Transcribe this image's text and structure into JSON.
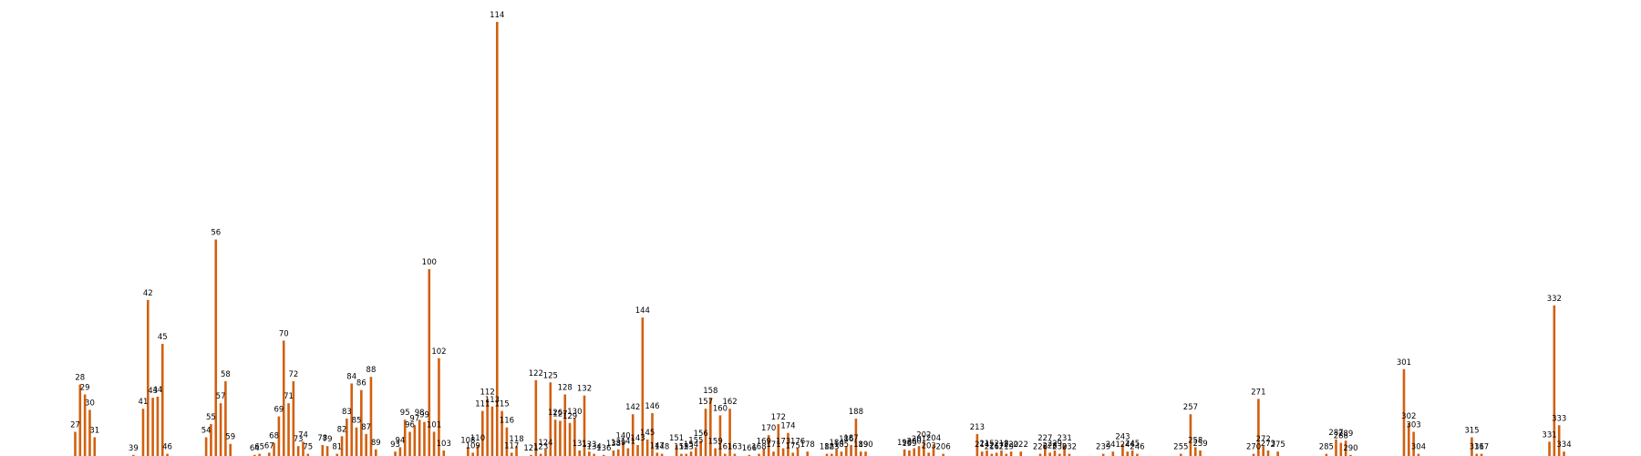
{
  "chart_data": {
    "type": "bar",
    "title": "",
    "xlabel": "",
    "ylabel": "",
    "xlim": [
      22,
      340
    ],
    "ylim": [
      0,
      4.1
    ],
    "grid": false,
    "bar_color": "#d2600f",
    "label_color": "#000000",
    "points": [
      {
        "x": 27,
        "y": 0.22,
        "label": "27"
      },
      {
        "x": 28,
        "y": 0.65,
        "label": "28"
      },
      {
        "x": 29,
        "y": 0.56,
        "label": "29"
      },
      {
        "x": 30,
        "y": 0.42,
        "label": "30"
      },
      {
        "x": 31,
        "y": 0.17,
        "label": "31"
      },
      {
        "x": 39,
        "y": 0.01,
        "label": "39"
      },
      {
        "x": 41,
        "y": 0.43,
        "label": "41"
      },
      {
        "x": 42,
        "y": 1.42,
        "label": "42"
      },
      {
        "x": 43,
        "y": 0.53,
        "label": "43"
      },
      {
        "x": 44,
        "y": 0.54,
        "label": "44"
      },
      {
        "x": 45,
        "y": 1.02,
        "label": "45"
      },
      {
        "x": 46,
        "y": 0.02,
        "label": "46"
      },
      {
        "x": 54,
        "y": 0.17,
        "label": "54"
      },
      {
        "x": 55,
        "y": 0.29,
        "label": "55"
      },
      {
        "x": 56,
        "y": 1.97,
        "label": "56"
      },
      {
        "x": 57,
        "y": 0.48,
        "label": "57"
      },
      {
        "x": 58,
        "y": 0.68,
        "label": "58"
      },
      {
        "x": 59,
        "y": 0.11,
        "label": "59"
      },
      {
        "x": 64,
        "y": 0.01,
        "label": "64"
      },
      {
        "x": 65,
        "y": 0.02,
        "label": "65"
      },
      {
        "x": 67,
        "y": 0.03,
        "label": "67"
      },
      {
        "x": 68,
        "y": 0.12,
        "label": "68"
      },
      {
        "x": 69,
        "y": 0.36,
        "label": "69"
      },
      {
        "x": 70,
        "y": 1.05,
        "label": "70"
      },
      {
        "x": 71,
        "y": 0.48,
        "label": "71"
      },
      {
        "x": 72,
        "y": 0.68,
        "label": "72"
      },
      {
        "x": 73,
        "y": 0.09,
        "label": "73"
      },
      {
        "x": 74,
        "y": 0.13,
        "label": "74"
      },
      {
        "x": 75,
        "y": 0.02,
        "label": "75"
      },
      {
        "x": 78,
        "y": 0.1,
        "label": "78"
      },
      {
        "x": 79,
        "y": 0.09,
        "label": "79"
      },
      {
        "x": 81,
        "y": 0.02,
        "label": "81"
      },
      {
        "x": 82,
        "y": 0.18,
        "label": "82"
      },
      {
        "x": 83,
        "y": 0.34,
        "label": "83"
      },
      {
        "x": 84,
        "y": 0.66,
        "label": "84"
      },
      {
        "x": 85,
        "y": 0.26,
        "label": "85"
      },
      {
        "x": 86,
        "y": 0.6,
        "label": "86"
      },
      {
        "x": 87,
        "y": 0.2,
        "label": "87"
      },
      {
        "x": 88,
        "y": 0.72,
        "label": "88"
      },
      {
        "x": 89,
        "y": 0.06,
        "label": "89"
      },
      {
        "x": 93,
        "y": 0.04,
        "label": "93"
      },
      {
        "x": 94,
        "y": 0.08,
        "label": "94"
      },
      {
        "x": 95,
        "y": 0.33,
        "label": "95"
      },
      {
        "x": 96,
        "y": 0.22,
        "label": "96"
      },
      {
        "x": 97,
        "y": 0.28,
        "label": "97"
      },
      {
        "x": 98,
        "y": 0.33,
        "label": "98"
      },
      {
        "x": 99,
        "y": 0.31,
        "label": "99"
      },
      {
        "x": 100,
        "y": 1.7,
        "label": "100"
      },
      {
        "x": 101,
        "y": 0.22,
        "label": "101"
      },
      {
        "x": 102,
        "y": 0.89,
        "label": "102"
      },
      {
        "x": 103,
        "y": 0.05,
        "label": "103"
      },
      {
        "x": 108,
        "y": 0.08,
        "label": "108"
      },
      {
        "x": 109,
        "y": 0.03,
        "label": "109"
      },
      {
        "x": 110,
        "y": 0.1,
        "label": "110"
      },
      {
        "x": 111,
        "y": 0.41,
        "label": "111"
      },
      {
        "x": 112,
        "y": 0.52,
        "label": "112"
      },
      {
        "x": 113,
        "y": 0.45,
        "label": "113"
      },
      {
        "x": 114,
        "y": 3.95,
        "label": "114"
      },
      {
        "x": 115,
        "y": 0.41,
        "label": "115"
      },
      {
        "x": 116,
        "y": 0.26,
        "label": "116"
      },
      {
        "x": 117,
        "y": 0.03,
        "label": "117"
      },
      {
        "x": 118,
        "y": 0.09,
        "label": "118"
      },
      {
        "x": 121,
        "y": 0.01,
        "label": "121"
      },
      {
        "x": 122,
        "y": 0.69,
        "label": "122"
      },
      {
        "x": 123,
        "y": 0.02,
        "label": "123"
      },
      {
        "x": 124,
        "y": 0.06,
        "label": "124"
      },
      {
        "x": 125,
        "y": 0.67,
        "label": "125"
      },
      {
        "x": 126,
        "y": 0.33,
        "label": "126"
      },
      {
        "x": 127,
        "y": 0.32,
        "label": "127"
      },
      {
        "x": 128,
        "y": 0.56,
        "label": "128"
      },
      {
        "x": 129,
        "y": 0.3,
        "label": "129"
      },
      {
        "x": 130,
        "y": 0.34,
        "label": "130"
      },
      {
        "x": 131,
        "y": 0.05,
        "label": "131"
      },
      {
        "x": 132,
        "y": 0.55,
        "label": "132"
      },
      {
        "x": 133,
        "y": 0.04,
        "label": "133"
      },
      {
        "x": 134,
        "y": 0.02,
        "label": "134"
      },
      {
        "x": 136,
        "y": 0.01,
        "label": "136"
      },
      {
        "x": 138,
        "y": 0.05,
        "label": "138"
      },
      {
        "x": 139,
        "y": 0.06,
        "label": "139"
      },
      {
        "x": 140,
        "y": 0.12,
        "label": "140"
      },
      {
        "x": 141,
        "y": 0.07,
        "label": "141"
      },
      {
        "x": 142,
        "y": 0.38,
        "label": "142"
      },
      {
        "x": 143,
        "y": 0.1,
        "label": "143"
      },
      {
        "x": 144,
        "y": 1.26,
        "label": "144"
      },
      {
        "x": 145,
        "y": 0.15,
        "label": "145"
      },
      {
        "x": 146,
        "y": 0.39,
        "label": "146"
      },
      {
        "x": 147,
        "y": 0.03,
        "label": "147"
      },
      {
        "x": 148,
        "y": 0.02,
        "label": "148"
      },
      {
        "x": 151,
        "y": 0.1,
        "label": "151"
      },
      {
        "x": 152,
        "y": 0.02,
        "label": "152"
      },
      {
        "x": 153,
        "y": 0.02,
        "label": "153"
      },
      {
        "x": 154,
        "y": 0.04,
        "label": "154"
      },
      {
        "x": 155,
        "y": 0.08,
        "label": "155"
      },
      {
        "x": 156,
        "y": 0.14,
        "label": "156"
      },
      {
        "x": 157,
        "y": 0.43,
        "label": "157"
      },
      {
        "x": 158,
        "y": 0.53,
        "label": "158"
      },
      {
        "x": 159,
        "y": 0.07,
        "label": "159"
      },
      {
        "x": 160,
        "y": 0.37,
        "label": "160"
      },
      {
        "x": 161,
        "y": 0.02,
        "label": "161"
      },
      {
        "x": 162,
        "y": 0.43,
        "label": "162"
      },
      {
        "x": 163,
        "y": 0.02,
        "label": "163"
      },
      {
        "x": 166,
        "y": 0.01,
        "label": "166"
      },
      {
        "x": 168,
        "y": 0.02,
        "label": "168"
      },
      {
        "x": 169,
        "y": 0.07,
        "label": "169"
      },
      {
        "x": 170,
        "y": 0.19,
        "label": "170"
      },
      {
        "x": 171,
        "y": 0.04,
        "label": "171"
      },
      {
        "x": 172,
        "y": 0.29,
        "label": "172"
      },
      {
        "x": 173,
        "y": 0.07,
        "label": "173"
      },
      {
        "x": 174,
        "y": 0.21,
        "label": "174"
      },
      {
        "x": 175,
        "y": 0.03,
        "label": "175"
      },
      {
        "x": 176,
        "y": 0.07,
        "label": "176"
      },
      {
        "x": 178,
        "y": 0.04,
        "label": "178"
      },
      {
        "x": 182,
        "y": 0.02,
        "label": "182"
      },
      {
        "x": 183,
        "y": 0.02,
        "label": "183"
      },
      {
        "x": 184,
        "y": 0.06,
        "label": "184"
      },
      {
        "x": 185,
        "y": 0.04,
        "label": "185"
      },
      {
        "x": 186,
        "y": 0.09,
        "label": "186"
      },
      {
        "x": 187,
        "y": 0.1,
        "label": "187"
      },
      {
        "x": 188,
        "y": 0.34,
        "label": "188"
      },
      {
        "x": 189,
        "y": 0.04,
        "label": "189"
      },
      {
        "x": 190,
        "y": 0.04,
        "label": "190"
      },
      {
        "x": 198,
        "y": 0.06,
        "label": "198"
      },
      {
        "x": 199,
        "y": 0.05,
        "label": "199"
      },
      {
        "x": 200,
        "y": 0.07,
        "label": "200"
      },
      {
        "x": 201,
        "y": 0.09,
        "label": "201"
      },
      {
        "x": 202,
        "y": 0.13,
        "label": "202"
      },
      {
        "x": 203,
        "y": 0.03,
        "label": "203"
      },
      {
        "x": 204,
        "y": 0.1,
        "label": "204"
      },
      {
        "x": 206,
        "y": 0.02,
        "label": "206"
      },
      {
        "x": 213,
        "y": 0.2,
        "label": "213"
      },
      {
        "x": 214,
        "y": 0.04,
        "label": "214"
      },
      {
        "x": 215,
        "y": 0.05,
        "label": "215"
      },
      {
        "x": 216,
        "y": 0.02,
        "label": "216"
      },
      {
        "x": 217,
        "y": 0.03,
        "label": "217"
      },
      {
        "x": 218,
        "y": 0.05,
        "label": "218"
      },
      {
        "x": 219,
        "y": 0.02,
        "label": "219"
      },
      {
        "x": 220,
        "y": 0.04,
        "label": "220"
      },
      {
        "x": 222,
        "y": 0.04,
        "label": "222"
      },
      {
        "x": 226,
        "y": 0.02,
        "label": "226"
      },
      {
        "x": 227,
        "y": 0.1,
        "label": "227"
      },
      {
        "x": 228,
        "y": 0.03,
        "label": "228"
      },
      {
        "x": 229,
        "y": 0.05,
        "label": "229"
      },
      {
        "x": 230,
        "y": 0.02,
        "label": "230"
      },
      {
        "x": 231,
        "y": 0.1,
        "label": "231"
      },
      {
        "x": 232,
        "y": 0.02,
        "label": "232"
      },
      {
        "x": 239,
        "y": 0.02,
        "label": "239"
      },
      {
        "x": 241,
        "y": 0.04,
        "label": "241"
      },
      {
        "x": 243,
        "y": 0.11,
        "label": "243"
      },
      {
        "x": 244,
        "y": 0.04,
        "label": "244"
      },
      {
        "x": 245,
        "y": 0.05,
        "label": "245"
      },
      {
        "x": 246,
        "y": 0.02,
        "label": "246"
      },
      {
        "x": 255,
        "y": 0.02,
        "label": "255"
      },
      {
        "x": 257,
        "y": 0.38,
        "label": "257"
      },
      {
        "x": 258,
        "y": 0.08,
        "label": "258"
      },
      {
        "x": 259,
        "y": 0.05,
        "label": "259"
      },
      {
        "x": 270,
        "y": 0.02,
        "label": "270"
      },
      {
        "x": 271,
        "y": 0.52,
        "label": "271"
      },
      {
        "x": 272,
        "y": 0.09,
        "label": "272"
      },
      {
        "x": 273,
        "y": 0.05,
        "label": "273"
      },
      {
        "x": 275,
        "y": 0.04,
        "label": "275"
      },
      {
        "x": 285,
        "y": 0.02,
        "label": "285"
      },
      {
        "x": 287,
        "y": 0.15,
        "label": "287"
      },
      {
        "x": 288,
        "y": 0.12,
        "label": "288"
      },
      {
        "x": 289,
        "y": 0.14,
        "label": "289"
      },
      {
        "x": 290,
        "y": 0.01,
        "label": "290"
      },
      {
        "x": 301,
        "y": 0.79,
        "label": "301"
      },
      {
        "x": 302,
        "y": 0.3,
        "label": "302"
      },
      {
        "x": 303,
        "y": 0.22,
        "label": "303"
      },
      {
        "x": 304,
        "y": 0.02,
        "label": "304"
      },
      {
        "x": 315,
        "y": 0.17,
        "label": "315"
      },
      {
        "x": 316,
        "y": 0.02,
        "label": "316"
      },
      {
        "x": 317,
        "y": 0.02,
        "label": "317"
      },
      {
        "x": 331,
        "y": 0.13,
        "label": "331"
      },
      {
        "x": 332,
        "y": 1.37,
        "label": "332"
      },
      {
        "x": 333,
        "y": 0.28,
        "label": "333"
      },
      {
        "x": 334,
        "y": 0.04,
        "label": "334"
      }
    ]
  }
}
